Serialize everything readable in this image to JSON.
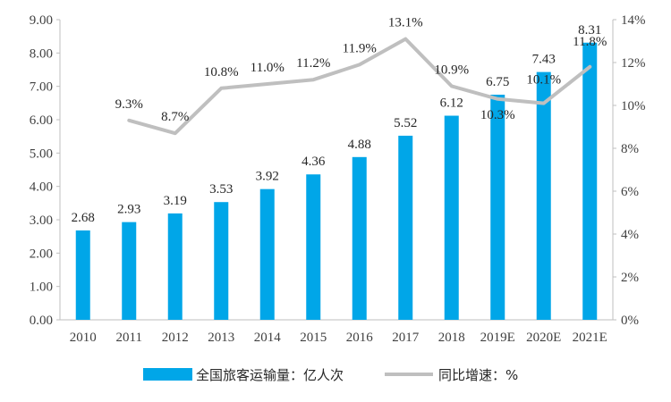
{
  "chart_data": {
    "type": "bar+line",
    "categories": [
      "2010",
      "2011",
      "2012",
      "2013",
      "2014",
      "2015",
      "2016",
      "2017",
      "2018",
      "2019E",
      "2020E",
      "2021E"
    ],
    "series": [
      {
        "name": "全国旅客运输量：亿人次",
        "type": "bar",
        "axis": "left",
        "color": "#00A6E8",
        "values": [
          2.68,
          2.93,
          3.19,
          3.53,
          3.92,
          4.36,
          4.88,
          5.52,
          6.12,
          6.75,
          7.43,
          8.31
        ],
        "labels": [
          "2.68",
          "2.93",
          "3.19",
          "3.53",
          "3.92",
          "4.36",
          "4.88",
          "5.52",
          "6.12",
          "6.75",
          "7.43",
          "8.31"
        ]
      },
      {
        "name": "同比增速：%",
        "type": "line",
        "axis": "right",
        "color": "#BFBFBF",
        "values": [
          null,
          9.3,
          8.7,
          10.8,
          11.0,
          11.2,
          11.9,
          13.1,
          10.9,
          10.3,
          10.1,
          11.8
        ],
        "labels": [
          "",
          "9.3%",
          "8.7%",
          "10.8%",
          "11.0%",
          "11.2%",
          "11.9%",
          "13.1%",
          "10.9%",
          "10.3%",
          "10.1%",
          "11.8%"
        ]
      }
    ],
    "y_left": {
      "min": 0,
      "max": 9,
      "ticks": [
        0,
        1,
        2,
        3,
        4,
        5,
        6,
        7,
        8,
        9
      ],
      "tick_labels": [
        "0.00",
        "1.00",
        "2.00",
        "3.00",
        "4.00",
        "5.00",
        "6.00",
        "7.00",
        "8.00",
        "9.00"
      ]
    },
    "y_right": {
      "min": 0,
      "max": 14,
      "ticks": [
        0,
        2,
        4,
        6,
        8,
        10,
        12,
        14
      ],
      "tick_labels": [
        "0%",
        "2%",
        "4%",
        "6%",
        "8%",
        "10%",
        "12%",
        "14%"
      ]
    },
    "grid": false,
    "legend": "bottom"
  }
}
